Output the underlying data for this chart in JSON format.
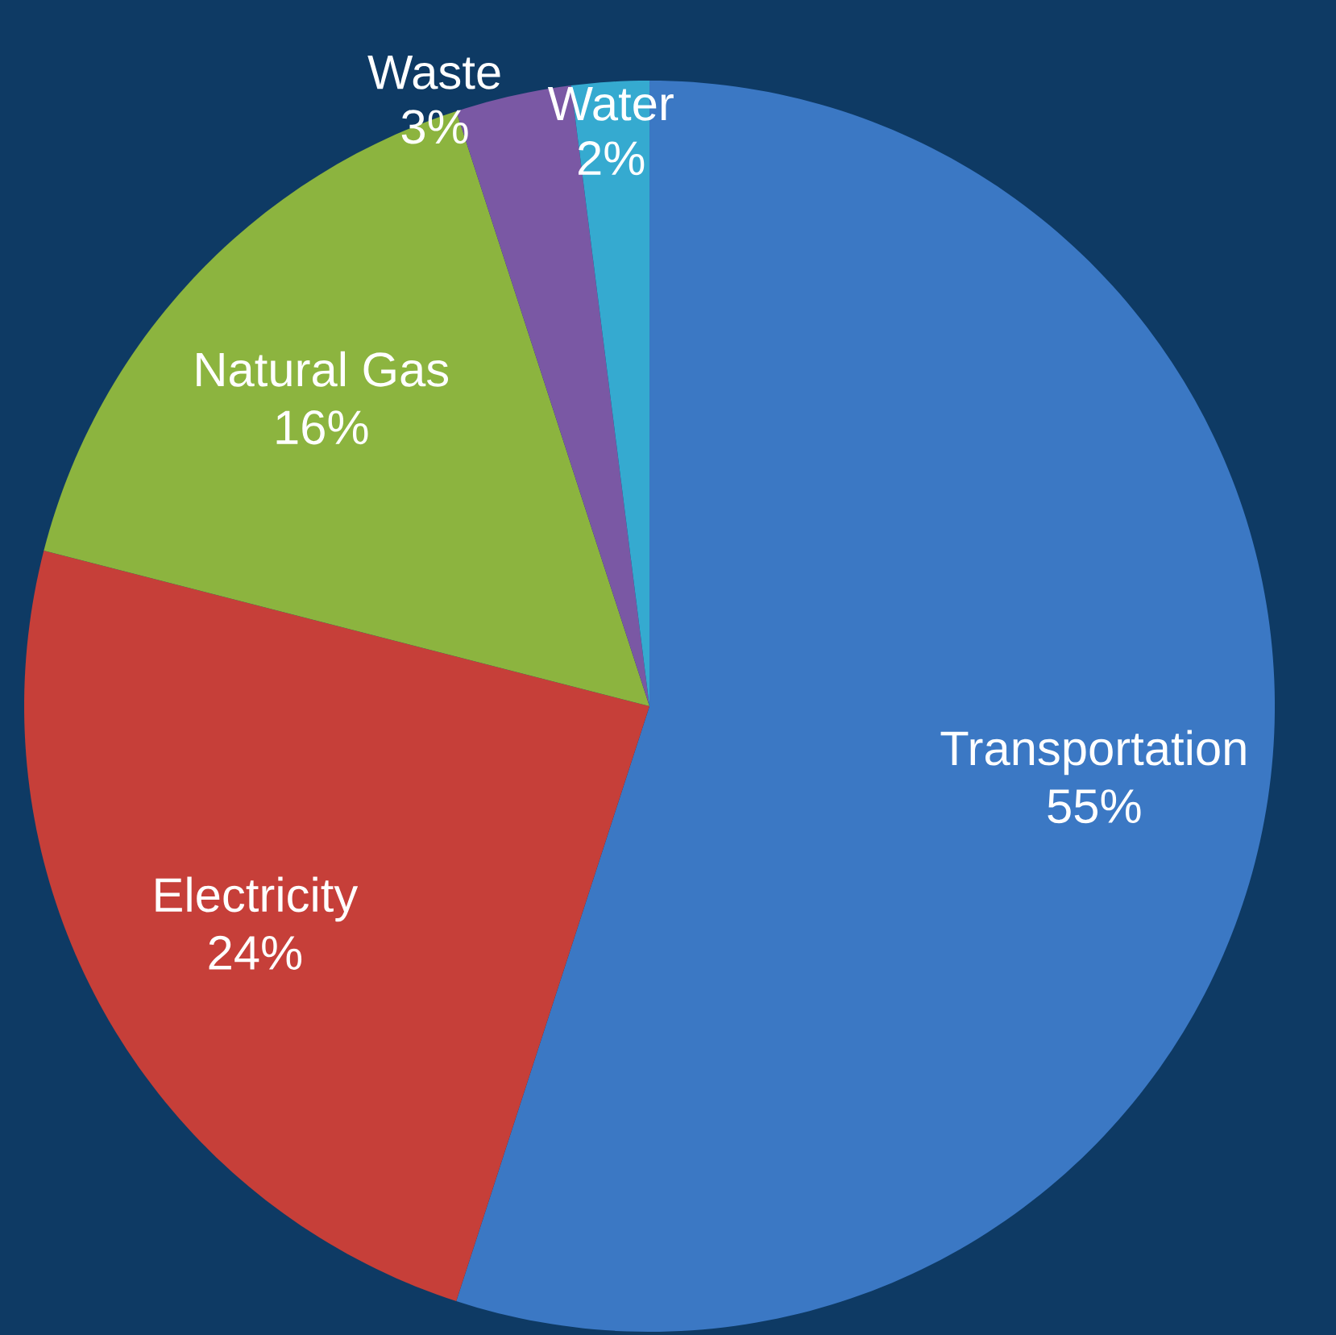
{
  "chart_data": {
    "type": "pie",
    "categories": [
      "Transportation",
      "Electricity",
      "Natural Gas",
      "Waste",
      "Water"
    ],
    "values": [
      55,
      24,
      16,
      3,
      2
    ],
    "value_labels": [
      "55%",
      "24%",
      "16%",
      "3%",
      "2%"
    ],
    "colors": [
      "#3b78c4",
      "#c63f39",
      "#8cb43f",
      "#7a58a4",
      "#35aad0"
    ]
  }
}
